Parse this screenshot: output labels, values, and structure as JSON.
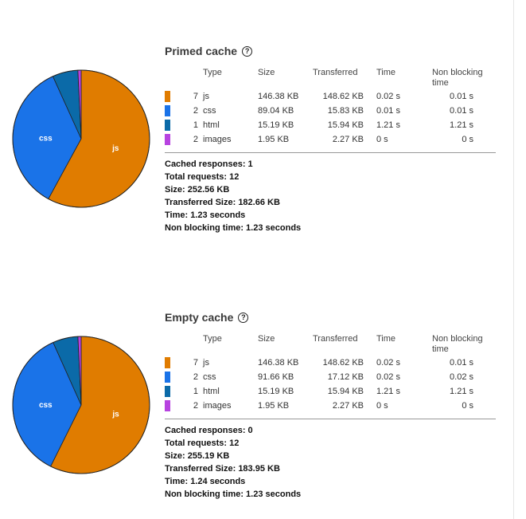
{
  "columns": {
    "type": "Type",
    "size": "Size",
    "transferred": "Transferred",
    "time": "Time",
    "non_blocking": "Non blocking time"
  },
  "sections": [
    {
      "title": "Primed cache",
      "rows": [
        {
          "count": "7",
          "type": "js",
          "size": "146.38 KB",
          "transferred": "148.62 KB",
          "time": "0.02 s",
          "non_blocking": "0.01 s",
          "color": "#e07c00",
          "size_kb": 146.38
        },
        {
          "count": "2",
          "type": "css",
          "size": "89.04 KB",
          "transferred": "15.83 KB",
          "time": "0.01 s",
          "non_blocking": "0.01 s",
          "color": "#1a73e8",
          "size_kb": 89.04
        },
        {
          "count": "1",
          "type": "html",
          "size": "15.19 KB",
          "transferred": "15.94 KB",
          "time": "1.21 s",
          "non_blocking": "1.21 s",
          "color": "#0b6aa8",
          "size_kb": 15.19
        },
        {
          "count": "2",
          "type": "images",
          "size": "1.95 KB",
          "transferred": "2.27 KB",
          "time": "0 s",
          "non_blocking": "0 s",
          "color": "#b743e0",
          "size_kb": 1.95
        }
      ],
      "summary": [
        "Cached responses: 1",
        "Total requests: 12",
        "Size: 252.56 KB",
        "Transferred Size: 182.66 KB",
        "Time: 1.23 seconds",
        "Non blocking time: 1.23 seconds"
      ]
    },
    {
      "title": "Empty cache",
      "rows": [
        {
          "count": "7",
          "type": "js",
          "size": "146.38 KB",
          "transferred": "148.62 KB",
          "time": "0.02 s",
          "non_blocking": "0.01 s",
          "color": "#e07c00",
          "size_kb": 146.38
        },
        {
          "count": "2",
          "type": "css",
          "size": "91.66 KB",
          "transferred": "17.12 KB",
          "time": "0.02 s",
          "non_blocking": "0.02 s",
          "color": "#1a73e8",
          "size_kb": 91.66
        },
        {
          "count": "1",
          "type": "html",
          "size": "15.19 KB",
          "transferred": "15.94 KB",
          "time": "1.21 s",
          "non_blocking": "1.21 s",
          "color": "#0b6aa8",
          "size_kb": 15.19
        },
        {
          "count": "2",
          "type": "images",
          "size": "1.95 KB",
          "transferred": "2.27 KB",
          "time": "0 s",
          "non_blocking": "0 s",
          "color": "#b743e0",
          "size_kb": 1.95
        }
      ],
      "summary": [
        "Cached responses: 0",
        "Total requests: 12",
        "Size: 255.19 KB",
        "Transferred Size: 183.95 KB",
        "Time: 1.24 seconds",
        "Non blocking time: 1.23 seconds"
      ]
    }
  ],
  "pie_labels": {
    "js": "js",
    "css": "css"
  }
}
